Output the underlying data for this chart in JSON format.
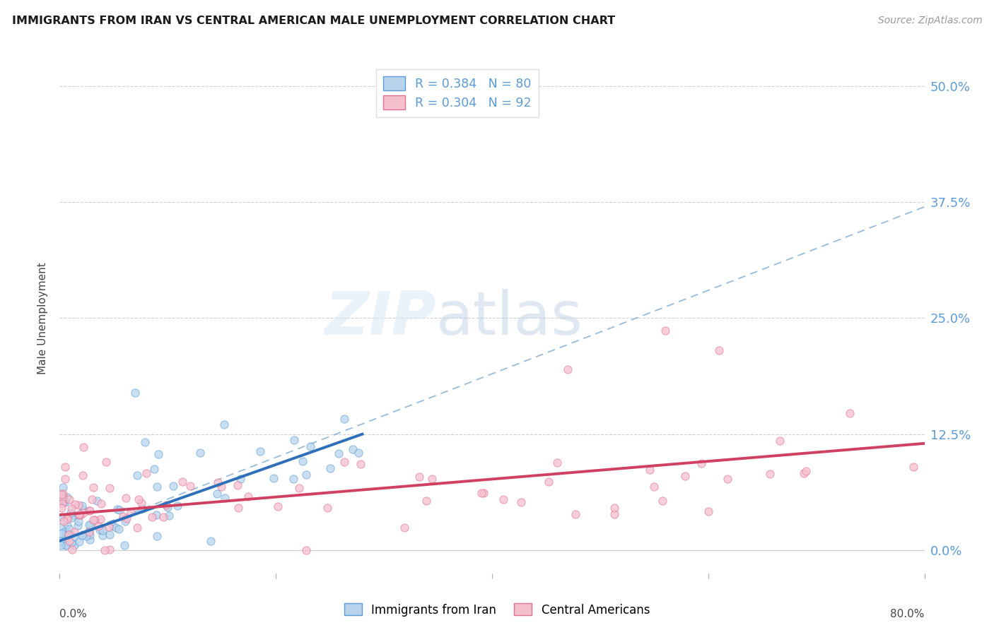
{
  "title": "IMMIGRANTS FROM IRAN VS CENTRAL AMERICAN MALE UNEMPLOYMENT CORRELATION CHART",
  "source": "Source: ZipAtlas.com",
  "ylabel": "Male Unemployment",
  "ytick_values": [
    0.0,
    0.125,
    0.25,
    0.375,
    0.5
  ],
  "ytick_labels": [
    "0.0%",
    "12.5%",
    "25.0%",
    "37.5%",
    "50.0%"
  ],
  "xlim": [
    0.0,
    0.8
  ],
  "ylim": [
    -0.025,
    0.525
  ],
  "legend_r1": "R = 0.384",
  "legend_n1": "N = 80",
  "legend_r2": "R = 0.304",
  "legend_n2": "N = 92",
  "color_iran_fill": "#b8d4ec",
  "color_iran_edge": "#5b9bd5",
  "color_iran_line": "#2e6fba",
  "color_ca_fill": "#f5bfce",
  "color_ca_edge": "#e07090",
  "color_ca_line": "#d04060",
  "color_dash": "#8ab4d8",
  "color_grid": "#d0d0d0",
  "color_ytick": "#5b9bd5",
  "background_color": "#ffffff",
  "watermark_zip": "ZIP",
  "watermark_atlas": "atlas",
  "iran_line_x0": 0.0,
  "iran_line_y0": 0.01,
  "iran_line_x1": 0.28,
  "iran_line_y1": 0.125,
  "dash_line_x0": 0.0,
  "dash_line_y0": 0.01,
  "dash_line_x1": 0.8,
  "dash_line_y1": 0.37,
  "ca_line_x0": 0.0,
  "ca_line_y0": 0.038,
  "ca_line_x1": 0.8,
  "ca_line_y1": 0.115
}
